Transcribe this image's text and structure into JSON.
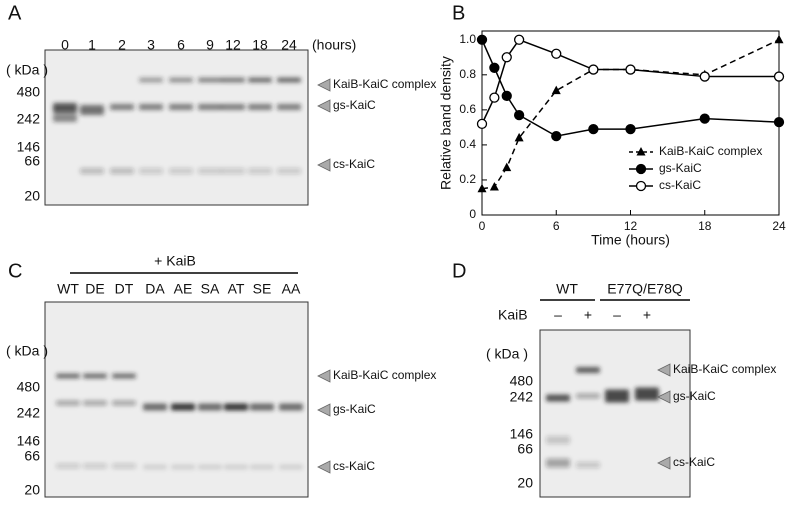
{
  "figure": {
    "A": {
      "letter": "A",
      "lanes": [
        "0",
        "1",
        "2",
        "3",
        "6",
        "9",
        "12",
        "18",
        "24"
      ],
      "lane_unit": "(hours)",
      "size_unit": "( kDa )",
      "markers": [
        "480",
        "242",
        "146",
        "66",
        "20"
      ],
      "bands": [
        "KaiB-KaiC complex",
        "gs-KaiC",
        "cs-KaiC"
      ]
    },
    "B": {
      "letter": "B"
    },
    "C": {
      "letter": "C",
      "treatment": "+ KaiB",
      "lanes": [
        "WT",
        "DE",
        "DT",
        "DA",
        "AE",
        "SA",
        "AT",
        "SE",
        "AA"
      ],
      "size_unit": "( kDa )",
      "markers": [
        "480",
        "242",
        "146",
        "66",
        "20"
      ],
      "bands": [
        "KaiB-KaiC complex",
        "gs-KaiC",
        "cs-KaiC"
      ]
    },
    "D": {
      "letter": "D",
      "groups": [
        "WT",
        "E77Q/E78Q"
      ],
      "row_label": "KaiB",
      "lanes": [
        "–",
        "+",
        "–",
        "+"
      ],
      "size_unit": "( kDa )",
      "markers": [
        "480",
        "242",
        "146",
        "66",
        "20"
      ],
      "bands": [
        "KaiB-KaiC complex",
        "gs-KaiC",
        "cs-KaiC"
      ]
    }
  },
  "chart_data": {
    "type": "line",
    "x_label": "Time (hours)",
    "y_label": "Relative band density",
    "x": [
      0,
      1,
      2,
      3,
      6,
      9,
      12,
      18,
      24
    ],
    "xlim": [
      0,
      24
    ],
    "xticks": [
      0,
      6,
      12,
      18,
      24
    ],
    "ylim": [
      0,
      1.05
    ],
    "yticks": [
      0,
      0.2,
      0.4,
      0.6,
      0.8,
      {
        "value": 1,
        "label": "1.0"
      }
    ],
    "legend": "center right",
    "series": [
      {
        "name": "KaiB-KaiC complex",
        "color": "#000000",
        "marker": "triangle",
        "linestyle": "dashed",
        "values": [
          0.15,
          0.16,
          0.27,
          0.44,
          0.71,
          0.83,
          0.83,
          0.8,
          1.0
        ]
      },
      {
        "name": "gs-KaiC",
        "color": "#000000",
        "marker": "circle",
        "linestyle": "solid",
        "values": [
          1.0,
          0.84,
          0.68,
          0.57,
          0.45,
          0.49,
          0.49,
          0.55,
          0.53
        ]
      },
      {
        "name": "cs-KaiC",
        "color": "#000000",
        "marker": "open-circle",
        "linestyle": "solid",
        "values": [
          0.52,
          0.67,
          0.9,
          1.0,
          0.92,
          0.83,
          0.83,
          0.79,
          0.79
        ]
      }
    ]
  }
}
